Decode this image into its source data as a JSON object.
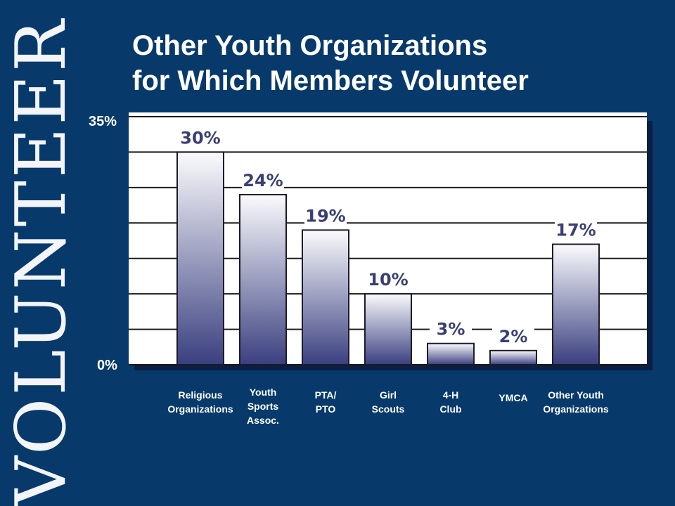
{
  "side_word": "VOLUNTEER",
  "title_line1": "Other Youth Organizations",
  "title_line2": "for Which Members Volunteer",
  "y_axis": {
    "max_label": "35%",
    "min_label": "0%"
  },
  "colors": {
    "background": "#073a6b",
    "plot_bg": "#ffffff",
    "bar_top": "#fbfbfd",
    "bar_bottom": "#3a3f7f",
    "bar_label": "#3a3f72",
    "gridline": "#1a1a1a"
  },
  "chart_data": {
    "type": "bar",
    "title": "Other Youth Organizations for Which Members Volunteer",
    "xlabel": "",
    "ylabel": "",
    "ylim": [
      0,
      35
    ],
    "grid": true,
    "categories": [
      "Religious\nOrganizations",
      "Youth\nSports\nAssoc.",
      "PTA/\nPTO",
      "Girl\nScouts",
      "4-H\nClub",
      "YMCA",
      "Other Youth\nOrganizations"
    ],
    "values": [
      30,
      24,
      19,
      10,
      3,
      2,
      17
    ],
    "data_labels": [
      "30%",
      "24%",
      "19%",
      "10%",
      "3%",
      "2%",
      "17%"
    ]
  }
}
